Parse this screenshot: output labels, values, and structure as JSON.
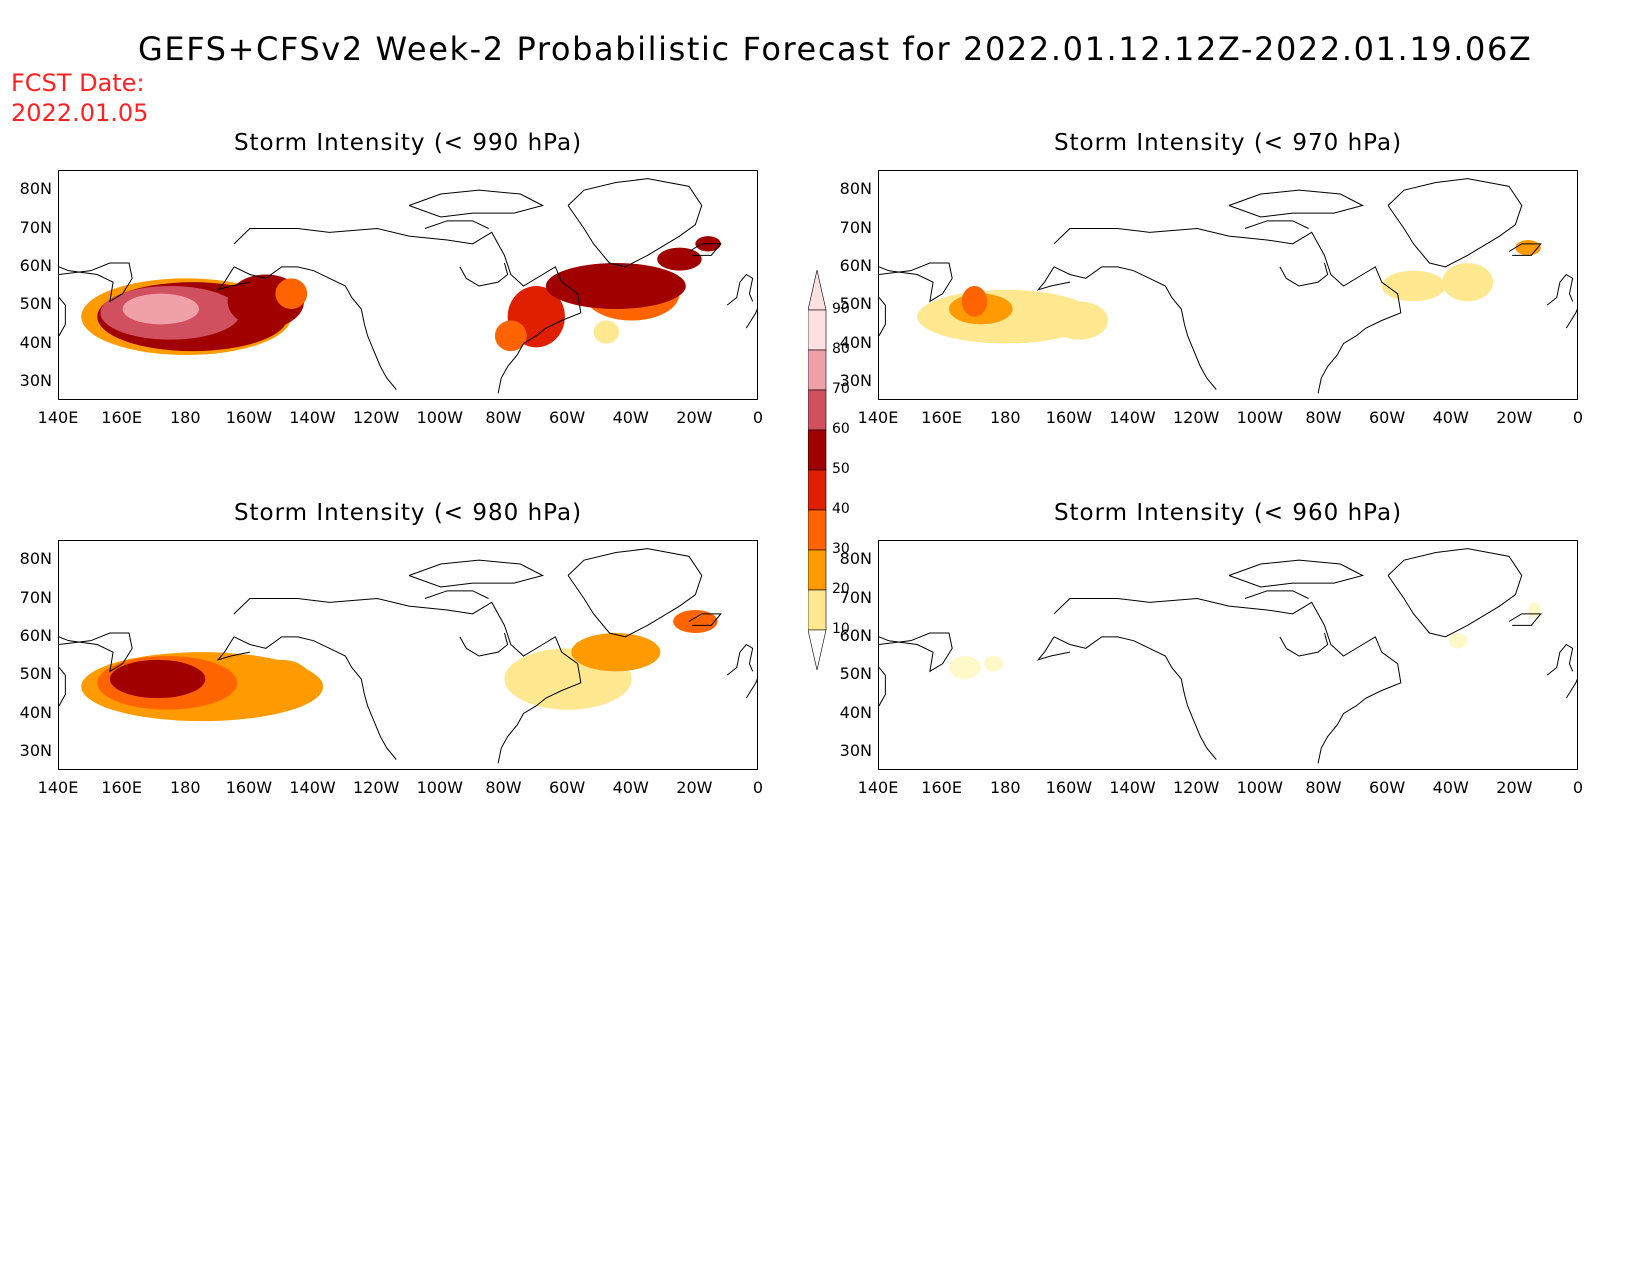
{
  "title": "GEFS+CFSv2 Week-2 Probabilistic Forecast for 2022.01.12.12Z-2022.01.19.06Z",
  "fcst_date_label": "FCST Date:",
  "fcst_date": "2022.01.05",
  "x_ticks": [
    "140E",
    "160E",
    "180",
    "160W",
    "140W",
    "120W",
    "100W",
    "80W",
    "60W",
    "40W",
    "20W",
    "0"
  ],
  "y_ticks": [
    "80N",
    "70N",
    "60N",
    "50N",
    "40N",
    "30N"
  ],
  "colorbar": {
    "labels": [
      "10",
      "20",
      "30",
      "40",
      "50",
      "60",
      "70",
      "80",
      "90"
    ],
    "colors": [
      "#fff8c8",
      "#ffe890",
      "#ff9a00",
      "#ff6400",
      "#e01e00",
      "#a00000",
      "#d05060",
      "#f0a0a8",
      "#ffe0e0"
    ]
  },
  "panels": [
    {
      "title": "Storm Intensity (< 990 hPa)",
      "blobs": [
        {
          "level": 3,
          "lon": 180,
          "lat": 47,
          "rx": 33,
          "ry": 10
        },
        {
          "level": 6,
          "lon": 182,
          "lat": 47,
          "rx": 30,
          "ry": 9
        },
        {
          "level": 7,
          "lon": 175,
          "lat": 48,
          "rx": 22,
          "ry": 7
        },
        {
          "level": 8,
          "lon": 172,
          "lat": 49,
          "rx": 12,
          "ry": 4
        },
        {
          "level": 6,
          "lon": 205,
          "lat": 51,
          "rx": 12,
          "ry": 7
        },
        {
          "level": 4,
          "lon": 213,
          "lat": 53,
          "rx": 5,
          "ry": 4
        },
        {
          "level": 5,
          "lon": 290,
          "lat": 47,
          "rx": 9,
          "ry": 8
        },
        {
          "level": 4,
          "lon": 320,
          "lat": 53,
          "rx": 15,
          "ry": 7
        },
        {
          "level": 6,
          "lon": 315,
          "lat": 55,
          "rx": 22,
          "ry": 6
        },
        {
          "level": 6,
          "lon": 335,
          "lat": 62,
          "rx": 7,
          "ry": 3
        },
        {
          "level": 4,
          "lon": 282,
          "lat": 42,
          "rx": 5,
          "ry": 4
        },
        {
          "level": 2,
          "lon": 312,
          "lat": 43,
          "rx": 4,
          "ry": 3
        },
        {
          "level": 6,
          "lon": 344,
          "lat": 66,
          "rx": 4,
          "ry": 2
        }
      ]
    },
    {
      "title": "Storm Intensity (< 970 hPa)",
      "blobs": [
        {
          "level": 2,
          "lon": 180,
          "lat": 47,
          "rx": 28,
          "ry": 7
        },
        {
          "level": 3,
          "lon": 172,
          "lat": 49,
          "rx": 10,
          "ry": 4
        },
        {
          "level": 4,
          "lon": 170,
          "lat": 51,
          "rx": 4,
          "ry": 4
        },
        {
          "level": 2,
          "lon": 203,
          "lat": 46,
          "rx": 9,
          "ry": 5
        },
        {
          "level": 2,
          "lon": 308,
          "lat": 55,
          "rx": 10,
          "ry": 4
        },
        {
          "level": 2,
          "lon": 325,
          "lat": 56,
          "rx": 8,
          "ry": 5
        },
        {
          "level": 3,
          "lon": 344,
          "lat": 65,
          "rx": 4,
          "ry": 2
        }
      ]
    },
    {
      "title": "Storm Intensity (< 980 hPa)",
      "blobs": [
        {
          "level": 3,
          "lon": 185,
          "lat": 47,
          "rx": 38,
          "ry": 9
        },
        {
          "level": 4,
          "lon": 174,
          "lat": 48,
          "rx": 22,
          "ry": 7
        },
        {
          "level": 6,
          "lon": 171,
          "lat": 49,
          "rx": 15,
          "ry": 5
        },
        {
          "level": 3,
          "lon": 210,
          "lat": 49,
          "rx": 9,
          "ry": 5
        },
        {
          "level": 2,
          "lon": 300,
          "lat": 49,
          "rx": 20,
          "ry": 8
        },
        {
          "level": 3,
          "lon": 315,
          "lat": 56,
          "rx": 14,
          "ry": 5
        },
        {
          "level": 4,
          "lon": 340,
          "lat": 64,
          "rx": 7,
          "ry": 3
        }
      ]
    },
    {
      "title": "Storm Intensity (< 960 hPa)",
      "blobs": [
        {
          "level": 1,
          "lon": 167,
          "lat": 52,
          "rx": 5,
          "ry": 3
        },
        {
          "level": 1,
          "lon": 176,
          "lat": 53,
          "rx": 3,
          "ry": 2
        },
        {
          "level": 1,
          "lon": 322,
          "lat": 59,
          "rx": 3,
          "ry": 2
        },
        {
          "level": 1,
          "lon": 346,
          "lat": 67,
          "rx": 2,
          "ry": 2
        }
      ]
    }
  ]
}
